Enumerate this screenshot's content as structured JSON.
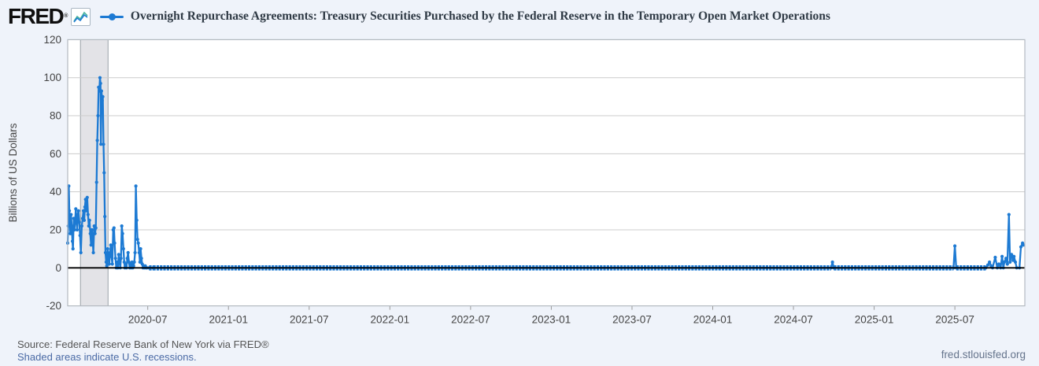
{
  "header": {
    "logo_text": "FRED",
    "registered_mark": "®",
    "title": "Overnight Repurchase Agreements: Treasury Securities Purchased by the Federal Reserve in the Temporary Open Market Operations"
  },
  "footer": {
    "source_line": "Source: Federal Reserve Bank of New York via FRED®",
    "recession_note": "Shaded areas indicate U.S. recessions.",
    "watermark": "fred.stlouisfed.org"
  },
  "colors": {
    "series": "#1d7ad3",
    "series_icon_secondary": "#46b29d",
    "background": "#eff3fa",
    "plot_bg": "#ffffff",
    "grid": "#cccccc",
    "plot_border": "#b3b9c0",
    "zero_line": "#000000",
    "recession_fill": "#e3e3e7",
    "recession_border": "#9aa0a8",
    "axis_text": "#444444",
    "tick": "#999999"
  },
  "chart_data": {
    "type": "line",
    "title": "Overnight Repurchase Agreements: Treasury Securities Purchased by the Federal Reserve in the Temporary Open Market Operations",
    "xlabel": "",
    "ylabel": "Billions of US Dollars",
    "grid": "horizontal",
    "legend_position": "top-left",
    "y_ticks": [
      -20,
      0,
      20,
      40,
      60,
      80,
      100,
      120
    ],
    "ylim": [
      -20,
      120
    ],
    "x_epoch": "2020-01",
    "xlim_months": [
      0.05,
      71.2
    ],
    "x_tick_months": [
      6,
      12,
      18,
      24,
      30,
      36,
      42,
      48,
      54,
      60,
      66
    ],
    "x_tick_labels": [
      "2020-07",
      "2021-01",
      "2021-07",
      "2022-01",
      "2022-07",
      "2023-01",
      "2023-07",
      "2024-01",
      "2024-07",
      "2025-01",
      "2025-07"
    ],
    "recession_bands": [
      {
        "start_month": 1.0,
        "end_month": 3.05
      }
    ],
    "baseline_value": 0,
    "series": [
      {
        "name": "Overnight Repurchase Agreements: Treasury Securities Purchased by the Federal Reserve in the Temporary Open Market Operations",
        "units": "Billions of US Dollars",
        "color": "#1d7ad3",
        "points_month_value": [
          [
            0.05,
            13
          ],
          [
            0.09,
            22
          ],
          [
            0.13,
            43
          ],
          [
            0.17,
            30
          ],
          [
            0.21,
            25
          ],
          [
            0.25,
            18
          ],
          [
            0.3,
            28
          ],
          [
            0.35,
            22
          ],
          [
            0.4,
            14
          ],
          [
            0.44,
            10
          ],
          [
            0.5,
            26
          ],
          [
            0.55,
            20
          ],
          [
            0.6,
            24
          ],
          [
            0.65,
            31
          ],
          [
            0.7,
            25
          ],
          [
            0.75,
            20
          ],
          [
            0.8,
            28
          ],
          [
            0.85,
            30
          ],
          [
            0.91,
            24
          ],
          [
            0.97,
            17
          ],
          [
            1.03,
            8
          ],
          [
            1.1,
            22
          ],
          [
            1.16,
            26
          ],
          [
            1.22,
            30
          ],
          [
            1.28,
            25
          ],
          [
            1.33,
            32
          ],
          [
            1.38,
            36
          ],
          [
            1.44,
            30
          ],
          [
            1.5,
            37
          ],
          [
            1.56,
            28
          ],
          [
            1.62,
            22
          ],
          [
            1.67,
            25
          ],
          [
            1.73,
            18
          ],
          [
            1.79,
            12
          ],
          [
            1.85,
            20
          ],
          [
            1.9,
            16
          ],
          [
            1.96,
            8
          ],
          [
            2.02,
            22
          ],
          [
            2.08,
            18
          ],
          [
            2.14,
            21
          ],
          [
            2.2,
            45
          ],
          [
            2.25,
            67
          ],
          [
            2.3,
            80
          ],
          [
            2.35,
            95
          ],
          [
            2.4,
            93
          ],
          [
            2.45,
            100
          ],
          [
            2.49,
            97
          ],
          [
            2.52,
            65
          ],
          [
            2.56,
            93
          ],
          [
            2.61,
            88
          ],
          [
            2.66,
            90
          ],
          [
            2.71,
            65
          ],
          [
            2.76,
            50
          ],
          [
            2.81,
            27
          ],
          [
            2.86,
            8
          ],
          [
            2.91,
            3
          ],
          [
            2.96,
            1
          ],
          [
            3.02,
            10
          ],
          [
            3.08,
            5
          ],
          [
            3.14,
            2
          ],
          [
            3.2,
            8
          ],
          [
            3.25,
            12
          ],
          [
            3.31,
            6
          ],
          [
            3.37,
            2
          ],
          [
            3.43,
            20
          ],
          [
            3.49,
            21
          ],
          [
            3.54,
            13
          ],
          [
            3.6,
            5
          ],
          [
            3.66,
            0
          ],
          [
            3.72,
            3
          ],
          [
            3.78,
            0
          ],
          [
            3.84,
            7
          ],
          [
            3.9,
            3
          ],
          [
            3.96,
            0
          ],
          [
            4.01,
            5
          ],
          [
            4.07,
            22
          ],
          [
            4.13,
            18
          ],
          [
            4.19,
            10
          ],
          [
            4.25,
            3
          ],
          [
            4.3,
            0
          ],
          [
            4.36,
            2
          ],
          [
            4.42,
            0
          ],
          [
            4.48,
            5
          ],
          [
            4.54,
            8
          ],
          [
            4.6,
            3
          ],
          [
            4.66,
            0
          ],
          [
            4.71,
            2
          ],
          [
            4.77,
            0
          ],
          [
            4.83,
            3
          ],
          [
            4.89,
            0
          ],
          [
            4.95,
            1
          ],
          [
            5.0,
            3
          ],
          [
            5.06,
            8
          ],
          [
            5.12,
            43
          ],
          [
            5.18,
            25
          ],
          [
            5.24,
            15
          ],
          [
            5.3,
            13
          ],
          [
            5.36,
            8
          ],
          [
            5.42,
            3
          ],
          [
            5.47,
            10
          ],
          [
            5.53,
            5
          ],
          [
            5.59,
            2
          ],
          [
            5.65,
            0
          ],
          [
            5.71,
            1
          ],
          [
            5.76,
            0
          ],
          [
            5.82,
            1
          ],
          [
            5.88,
            0
          ],
          [
            5.94,
            0
          ],
          [
            6.1,
            0
          ],
          [
            6.4,
            0
          ],
          [
            56.8,
            0
          ],
          [
            56.9,
            3
          ],
          [
            57.0,
            0
          ],
          [
            65.9,
            0
          ],
          [
            66.0,
            11.5
          ],
          [
            66.1,
            0
          ],
          [
            68.3,
            0
          ],
          [
            68.45,
            1.5
          ],
          [
            68.57,
            3
          ],
          [
            68.7,
            1
          ],
          [
            68.8,
            0
          ],
          [
            69.0,
            5.5
          ],
          [
            69.15,
            0
          ],
          [
            69.27,
            2
          ],
          [
            69.4,
            0
          ],
          [
            69.51,
            6
          ],
          [
            69.6,
            0
          ],
          [
            69.68,
            3
          ],
          [
            69.8,
            5
          ],
          [
            69.9,
            2
          ],
          [
            70.02,
            28
          ],
          [
            70.1,
            3
          ],
          [
            70.21,
            7
          ],
          [
            70.33,
            4
          ],
          [
            70.39,
            6
          ],
          [
            70.5,
            3
          ],
          [
            70.6,
            0
          ],
          [
            70.8,
            0
          ],
          [
            70.91,
            11
          ],
          [
            71.03,
            13
          ],
          [
            71.1,
            12
          ]
        ]
      }
    ]
  }
}
